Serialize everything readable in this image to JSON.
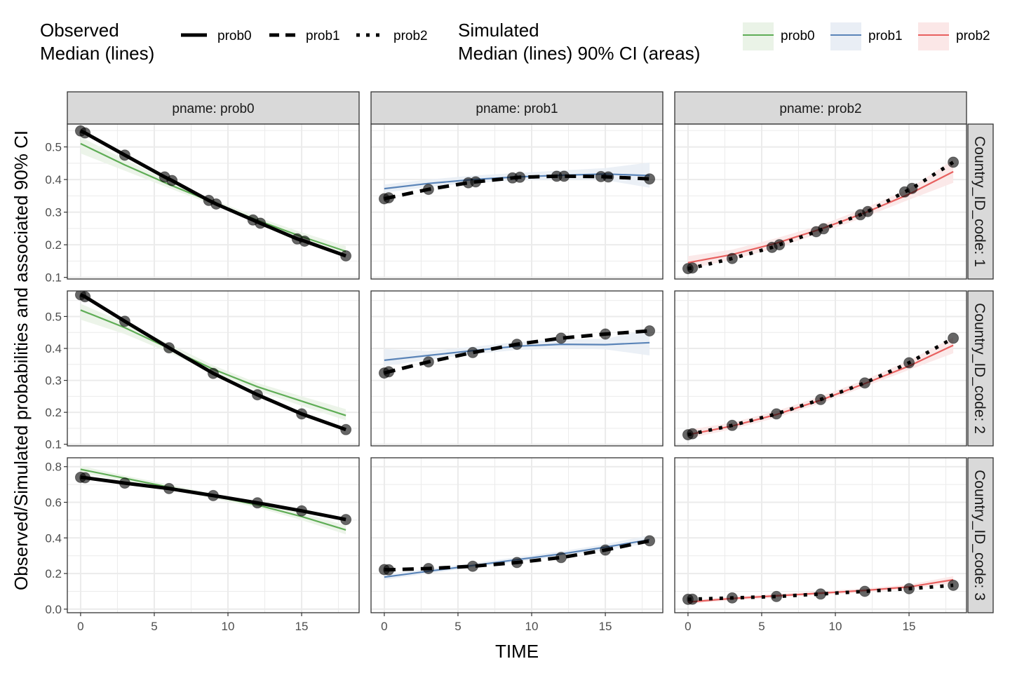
{
  "legend": {
    "observed_title_line1": "Observed",
    "observed_title_line2": "Median (lines)",
    "observed_items": [
      {
        "label": "prob0",
        "dash": "solid"
      },
      {
        "label": "prob1",
        "dash": "dashed"
      },
      {
        "label": "prob2",
        "dash": "dotted"
      }
    ],
    "simulated_title_line1": "Simulated",
    "simulated_title_line2": "Median (lines) 90% CI (areas)",
    "simulated_items": [
      {
        "label": "prob0",
        "color": "#5FAD56",
        "fill": "#EAF3E7"
      },
      {
        "label": "prob1",
        "color": "#5A84B8",
        "fill": "#E9EEF5"
      },
      {
        "label": "prob2",
        "color": "#E8605F",
        "fill": "#FBE7E7"
      }
    ]
  },
  "axis": {
    "xlabel": "TIME",
    "ylabel": "Observed/Simulated probabilities and associated 90% CI"
  },
  "colors": {
    "observed": "#000000",
    "strip_bg": "#D9D9D9",
    "panel_border": "#333333",
    "grid": "#EBEBEB",
    "prob0": "#5FAD56",
    "prob1": "#5A84B8",
    "prob2": "#E8605F"
  },
  "chart_data": {
    "type": "line",
    "facet_cols": [
      "pname: prob0",
      "pname: prob1",
      "pname: prob2"
    ],
    "facet_rows": [
      "Country_ID_code: 1",
      "Country_ID_code: 2",
      "Country_ID_code: 3"
    ],
    "xlim": [
      -0.9,
      18.9
    ],
    "x_ticks": [
      0,
      5,
      10,
      15
    ],
    "rows": [
      {
        "ylim": [
          0.095,
          0.57
        ],
        "y_ticks": [
          0.1,
          0.2,
          0.3,
          0.4,
          0.5
        ],
        "y_tick_labels": [
          "0.1",
          "0.2",
          "0.3",
          "0.4",
          "0.5"
        ],
        "panels": [
          {
            "x": [
              0,
              0.3,
              3,
              5.7,
              6.2,
              8.7,
              9.2,
              11.7,
              12.2,
              14.7,
              15.2,
              18
            ],
            "observed": [
              0.549,
              0.543,
              0.475,
              0.408,
              0.397,
              0.336,
              0.325,
              0.276,
              0.266,
              0.218,
              0.211,
              0.166
            ],
            "sim_x": [
              0,
              3,
              6,
              9,
              12,
              15,
              18
            ],
            "sim_median": [
              0.51,
              0.445,
              0.385,
              0.33,
              0.275,
              0.225,
              0.18
            ],
            "sim_low": [
              0.48,
              0.427,
              0.374,
              0.322,
              0.266,
              0.214,
              0.165
            ],
            "sim_high": [
              0.53,
              0.462,
              0.396,
              0.338,
              0.285,
              0.238,
              0.196
            ]
          },
          {
            "x": [
              0,
              0.3,
              3,
              5.7,
              6.2,
              8.7,
              9.2,
              11.7,
              12.2,
              14.7,
              15.2,
              18
            ],
            "observed": [
              0.341,
              0.344,
              0.37,
              0.39,
              0.393,
              0.405,
              0.407,
              0.41,
              0.41,
              0.409,
              0.408,
              0.402
            ],
            "sim_x": [
              0,
              3,
              6,
              9,
              12,
              15,
              18
            ],
            "sim_median": [
              0.372,
              0.388,
              0.4,
              0.408,
              0.413,
              0.417,
              0.412
            ],
            "sim_low": [
              0.36,
              0.377,
              0.39,
              0.397,
              0.4,
              0.398,
              0.375
            ],
            "sim_high": [
              0.385,
              0.4,
              0.412,
              0.42,
              0.428,
              0.435,
              0.452
            ]
          },
          {
            "x": [
              0,
              0.3,
              3,
              5.7,
              6.2,
              8.7,
              9.2,
              11.7,
              12.2,
              14.7,
              15.2,
              18
            ],
            "observed": [
              0.127,
              0.129,
              0.158,
              0.192,
              0.2,
              0.24,
              0.249,
              0.292,
              0.302,
              0.362,
              0.373,
              0.453
            ],
            "sim_x": [
              0,
              3,
              6,
              9,
              12,
              15,
              18
            ],
            "sim_median": [
              0.145,
              0.17,
              0.205,
              0.248,
              0.298,
              0.355,
              0.424
            ],
            "sim_low": [
              0.125,
              0.155,
              0.19,
              0.236,
              0.285,
              0.338,
              0.39
            ],
            "sim_high": [
              0.165,
              0.185,
              0.22,
              0.26,
              0.312,
              0.372,
              0.46
            ]
          }
        ]
      },
      {
        "ylim": [
          0.095,
          0.58
        ],
        "y_ticks": [
          0.1,
          0.2,
          0.3,
          0.4,
          0.5
        ],
        "y_tick_labels": [
          "0.1",
          "0.2",
          "0.3",
          "0.4",
          "0.5"
        ],
        "panels": [
          {
            "x": [
              0,
              0.3,
              3,
              6,
              9,
              12,
              15,
              18
            ],
            "observed": [
              0.568,
              0.562,
              0.485,
              0.402,
              0.322,
              0.255,
              0.195,
              0.146
            ],
            "sim_x": [
              0,
              3,
              6,
              9,
              12,
              15,
              18
            ],
            "sim_median": [
              0.52,
              0.465,
              0.4,
              0.335,
              0.28,
              0.235,
              0.19
            ],
            "sim_low": [
              0.49,
              0.445,
              0.387,
              0.324,
              0.268,
              0.22,
              0.175
            ],
            "sim_high": [
              0.54,
              0.48,
              0.415,
              0.347,
              0.292,
              0.25,
              0.21
            ]
          },
          {
            "x": [
              0,
              0.3,
              3,
              6,
              9,
              12,
              15,
              18
            ],
            "observed": [
              0.323,
              0.327,
              0.358,
              0.387,
              0.413,
              0.432,
              0.445,
              0.455
            ],
            "sim_x": [
              0,
              3,
              6,
              9,
              12,
              15,
              18
            ],
            "sim_median": [
              0.363,
              0.378,
              0.393,
              0.407,
              0.413,
              0.412,
              0.418
            ],
            "sim_low": [
              0.345,
              0.365,
              0.382,
              0.395,
              0.4,
              0.397,
              0.378
            ],
            "sim_high": [
              0.398,
              0.392,
              0.405,
              0.42,
              0.428,
              0.43,
              0.46
            ]
          },
          {
            "x": [
              0,
              0.3,
              3,
              6,
              9,
              12,
              15,
              18
            ],
            "observed": [
              0.13,
              0.133,
              0.159,
              0.195,
              0.24,
              0.292,
              0.355,
              0.432
            ],
            "sim_x": [
              0,
              3,
              6,
              9,
              12,
              15,
              18
            ],
            "sim_median": [
              0.13,
              0.157,
              0.193,
              0.238,
              0.29,
              0.345,
              0.41
            ],
            "sim_low": [
              0.118,
              0.147,
              0.183,
              0.228,
              0.28,
              0.333,
              0.385
            ],
            "sim_high": [
              0.145,
              0.168,
              0.204,
              0.25,
              0.302,
              0.362,
              0.435
            ]
          }
        ]
      },
      {
        "ylim": [
          -0.02,
          0.85
        ],
        "y_ticks": [
          0.0,
          0.2,
          0.4,
          0.6,
          0.8
        ],
        "y_tick_labels": [
          "0.0",
          "0.2",
          "0.4",
          "0.6",
          "0.8"
        ],
        "panels": [
          {
            "x": [
              0,
              0.3,
              3,
              6,
              9,
              12,
              15,
              18
            ],
            "observed": [
              0.74,
              0.738,
              0.708,
              0.677,
              0.638,
              0.597,
              0.552,
              0.503
            ],
            "sim_x": [
              0,
              3,
              6,
              9,
              12,
              15,
              18
            ],
            "sim_median": [
              0.785,
              0.735,
              0.685,
              0.635,
              0.585,
              0.52,
              0.445
            ],
            "sim_low": [
              0.765,
              0.72,
              0.672,
              0.622,
              0.57,
              0.5,
              0.42
            ],
            "sim_high": [
              0.805,
              0.75,
              0.7,
              0.648,
              0.6,
              0.54,
              0.47
            ]
          },
          {
            "x": [
              0,
              0.3,
              3,
              6,
              9,
              12,
              15,
              18
            ],
            "observed": [
              0.222,
              0.221,
              0.228,
              0.241,
              0.262,
              0.29,
              0.332,
              0.384
            ],
            "sim_x": [
              0,
              3,
              6,
              9,
              12,
              15,
              18
            ],
            "sim_median": [
              0.18,
              0.213,
              0.245,
              0.278,
              0.31,
              0.348,
              0.39
            ],
            "sim_low": [
              0.165,
              0.2,
              0.233,
              0.265,
              0.297,
              0.332,
              0.37
            ],
            "sim_high": [
              0.195,
              0.226,
              0.258,
              0.292,
              0.325,
              0.365,
              0.415
            ]
          },
          {
            "x": [
              0,
              0.3,
              3,
              6,
              9,
              12,
              15,
              18
            ],
            "observed": [
              0.055,
              0.056,
              0.063,
              0.071,
              0.085,
              0.1,
              0.115,
              0.134
            ],
            "sim_x": [
              0,
              3,
              6,
              9,
              12,
              15,
              18
            ],
            "sim_median": [
              0.04,
              0.06,
              0.075,
              0.09,
              0.105,
              0.125,
              0.165
            ],
            "sim_low": [
              0.03,
              0.05,
              0.065,
              0.08,
              0.095,
              0.112,
              0.145
            ],
            "sim_high": [
              0.05,
              0.07,
              0.085,
              0.1,
              0.117,
              0.138,
              0.185
            ]
          }
        ]
      }
    ]
  }
}
